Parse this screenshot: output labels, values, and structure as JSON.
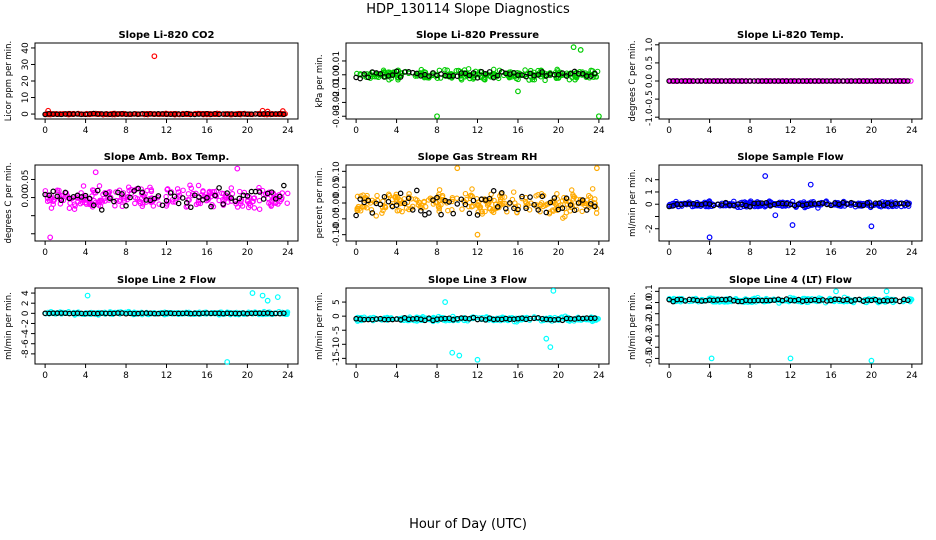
{
  "figure": {
    "title": "HDP_130114  Slope Diagnostics",
    "xlabel": "Hour of Day (UTC)"
  },
  "chart_data": [
    {
      "type": "scatter",
      "title": "Slope Li-820 CO2",
      "ylabel": "Licor ppm per min.",
      "color": "#ff0000",
      "xlim": [
        -1,
        25
      ],
      "ylim": [
        -3,
        43
      ],
      "xticks": [
        0,
        4,
        8,
        12,
        16,
        20,
        24
      ],
      "yticks": [
        0,
        10,
        20,
        30,
        40
      ],
      "ytick_labels": [
        "0",
        "10",
        "20",
        "30",
        "40"
      ],
      "base": 0,
      "noise": 0.5,
      "black_noise": 0.3,
      "outliers": [
        [
          10.8,
          35
        ],
        [
          0.3,
          2
        ],
        [
          21.5,
          2
        ],
        [
          22,
          1.5
        ],
        [
          23.5,
          1.8
        ]
      ]
    },
    {
      "type": "scatter",
      "title": "Slope Li-820 Pressure",
      "ylabel": "kPa per min.",
      "color": "#00cc00",
      "xlim": [
        -1,
        25
      ],
      "ylim": [
        -0.032,
        0.023
      ],
      "xticks": [
        0,
        4,
        8,
        12,
        16,
        20,
        24
      ],
      "yticks": [
        -0.03,
        -0.02,
        -0.01,
        0.0,
        0.01
      ],
      "ytick_labels": [
        "-0.03",
        "-0.02",
        "-0.01",
        "0.00",
        "0.01"
      ],
      "base": 0,
      "noise": 0.005,
      "black_noise": 0.004,
      "outliers": [
        [
          16,
          -0.012
        ],
        [
          24,
          -0.03
        ],
        [
          22.2,
          0.018
        ],
        [
          8,
          -0.03
        ],
        [
          21.5,
          0.02
        ]
      ]
    },
    {
      "type": "scatter",
      "title": "Slope Li-820 Temp.",
      "ylabel": "degrees C per min.",
      "color": "#ff00ff",
      "xlim": [
        -1,
        25
      ],
      "ylim": [
        -1.05,
        1.05
      ],
      "xticks": [
        0,
        4,
        8,
        12,
        16,
        20,
        24
      ],
      "yticks": [
        -1.0,
        -0.5,
        0.0,
        0.5,
        1.0
      ],
      "ytick_labels": [
        "-1.0",
        "-0.5",
        "0.0",
        "0.5",
        "1.0"
      ],
      "base": 0,
      "noise": 0.0,
      "black_noise": 0.0,
      "outliers": []
    },
    {
      "type": "scatter",
      "title": "Slope Amb. Box Temp.",
      "ylabel": "degrees C per min.",
      "color": "#ff00ff",
      "xlim": [
        -1,
        25
      ],
      "ylim": [
        -0.12,
        0.09
      ],
      "xticks": [
        0,
        4,
        8,
        12,
        16,
        20,
        24
      ],
      "yticks": [
        -0.1,
        -0.05,
        0.0,
        0.05
      ],
      "ytick_labels": [
        "",
        "",
        "0.00",
        "0.05"
      ],
      "base": 0,
      "noise": 0.045,
      "black_noise": 0.045,
      "outliers": [
        [
          0.5,
          -0.11
        ],
        [
          5,
          0.07
        ],
        [
          19,
          0.08
        ]
      ]
    },
    {
      "type": "scatter",
      "title": "Slope Gas Stream RH",
      "ylabel": "percent per min.",
      "color": "#ffaa00",
      "xlim": [
        -1,
        25
      ],
      "ylim": [
        -0.12,
        0.12
      ],
      "xticks": [
        0,
        4,
        8,
        12,
        16,
        20,
        24
      ],
      "yticks": [
        -0.1,
        -0.05,
        0.0,
        0.05,
        0.1
      ],
      "ytick_labels": [
        "-0.10",
        "-0.05",
        "0.00",
        "0.05",
        "0.10"
      ],
      "base": 0,
      "noise": 0.055,
      "black_noise": 0.05,
      "outliers": [
        [
          12,
          -0.1
        ],
        [
          10,
          0.11
        ],
        [
          23.8,
          0.11
        ]
      ]
    },
    {
      "type": "scatter",
      "title": "Slope Sample Flow",
      "ylabel": "ml/min per min.",
      "color": "#0000ff",
      "xlim": [
        -1,
        25
      ],
      "ylim": [
        -3,
        3.2
      ],
      "xticks": [
        0,
        4,
        8,
        12,
        16,
        20,
        24
      ],
      "yticks": [
        -2,
        -1,
        0,
        1,
        2
      ],
      "ytick_labels": [
        "-2",
        "",
        "0",
        "1",
        "2"
      ],
      "base": 0,
      "noise": 0.35,
      "black_noise": 0.25,
      "outliers": [
        [
          4,
          -2.7
        ],
        [
          9.5,
          2.3
        ],
        [
          10.5,
          -0.9
        ],
        [
          20,
          -1.8
        ],
        [
          12.2,
          -1.7
        ],
        [
          14,
          1.6
        ]
      ]
    },
    {
      "type": "scatter",
      "title": "Slope Line 2 Flow",
      "ylabel": "ml/min per min.",
      "color": "#00ffff",
      "xlim": [
        -1,
        25
      ],
      "ylim": [
        -10,
        5
      ],
      "xticks": [
        0,
        4,
        8,
        12,
        16,
        20,
        24
      ],
      "yticks": [
        -8,
        -6,
        -4,
        -2,
        0,
        2,
        4
      ],
      "ytick_labels": [
        "-8",
        "-6",
        "-4",
        "-2",
        "0",
        "2",
        "4"
      ],
      "base": 0,
      "noise": 0.4,
      "black_noise": 0.1,
      "outliers": [
        [
          18,
          -9.6
        ],
        [
          4.2,
          3.5
        ],
        [
          20.5,
          4
        ],
        [
          21.5,
          3.5
        ],
        [
          23,
          3.2
        ],
        [
          22,
          2.5
        ]
      ]
    },
    {
      "type": "scatter",
      "title": "Slope Line 3 Flow",
      "ylabel": "ml/min per min.",
      "color": "#00ffff",
      "xlim": [
        -1,
        25
      ],
      "ylim": [
        -17,
        10
      ],
      "xticks": [
        0,
        4,
        8,
        12,
        16,
        20,
        24
      ],
      "yticks": [
        -15,
        -10,
        -5,
        0,
        5
      ],
      "ytick_labels": [
        "-15",
        "-10",
        "-5",
        "0",
        "5"
      ],
      "base": -1,
      "noise": 1.2,
      "black_noise": 0.8,
      "outliers": [
        [
          9.5,
          -13
        ],
        [
          12,
          -15.5
        ],
        [
          19.2,
          -11
        ],
        [
          19.5,
          9
        ],
        [
          10.2,
          -14
        ],
        [
          8.8,
          5
        ],
        [
          18.8,
          -8
        ]
      ]
    },
    {
      "type": "scatter",
      "title": "Slope Line 4 (LT) Flow",
      "ylabel": "ml/min per min.",
      "color": "#00ffff",
      "xlim": [
        -1,
        25
      ],
      "ylim": [
        -0.55,
        0.13
      ],
      "xticks": [
        0,
        4,
        8,
        12,
        16,
        20,
        24
      ],
      "yticks": [
        -0.5,
        -0.4,
        -0.3,
        -0.2,
        -0.1,
        0.0,
        0.1
      ],
      "ytick_labels": [
        "-0.5",
        "-0.4",
        "-0.3",
        "-0.2",
        "-0.1",
        "0.0",
        "0.1"
      ],
      "base": 0.02,
      "noise": 0.03,
      "black_noise": 0.02,
      "outliers": [
        [
          4.2,
          -0.5
        ],
        [
          12,
          -0.5
        ],
        [
          20,
          -0.52
        ],
        [
          16.5,
          0.1
        ],
        [
          21.5,
          0.1
        ]
      ]
    }
  ]
}
